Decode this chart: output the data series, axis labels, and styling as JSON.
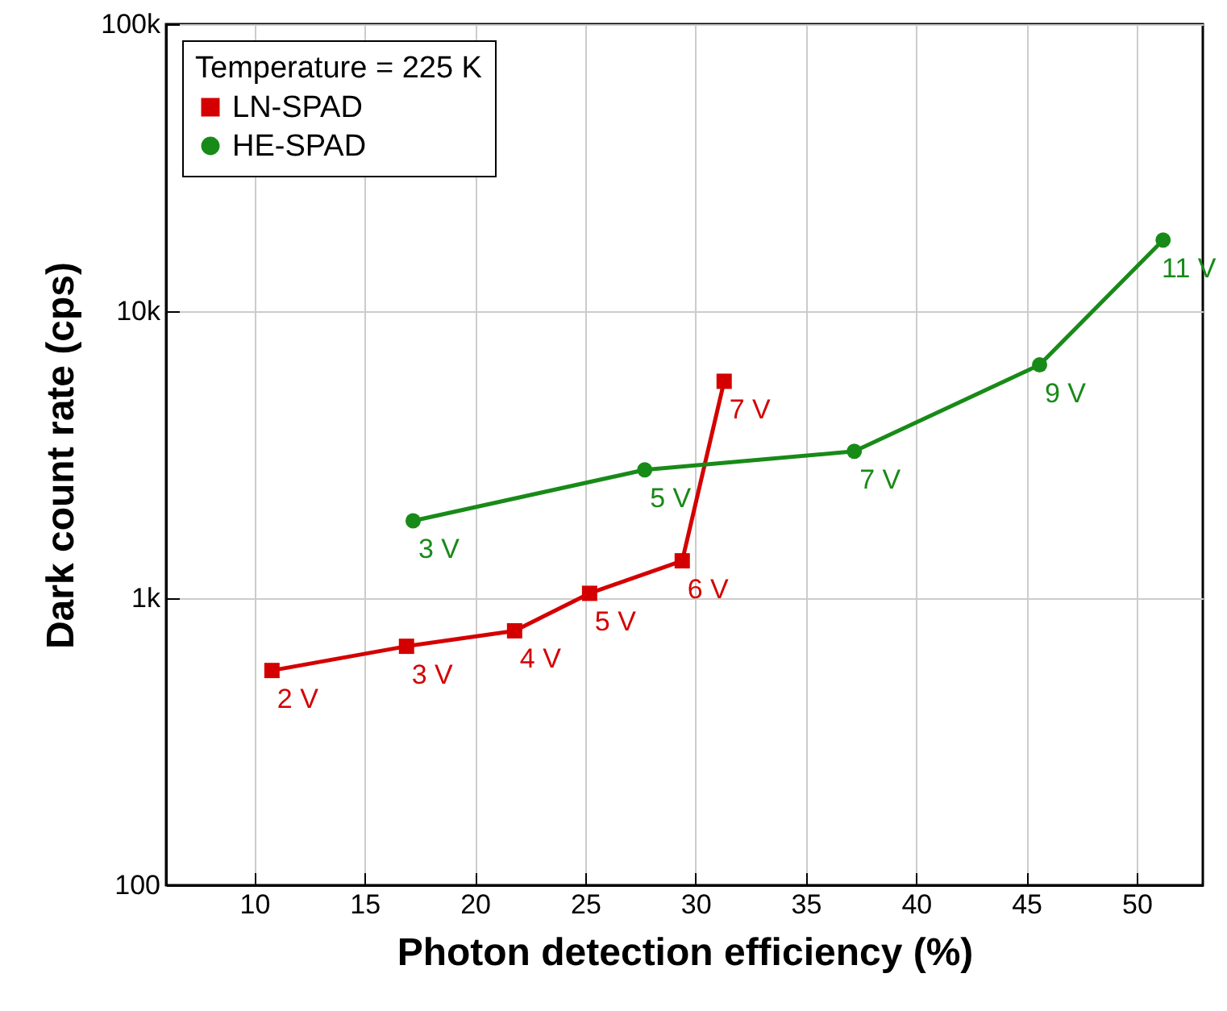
{
  "chart_data": {
    "type": "line",
    "xlabel": "Photon detection efficiency (%)",
    "ylabel": "Dark count rate (cps)",
    "legend_title": "Temperature = 225 K",
    "log": "y",
    "grid": true,
    "legend": "top left",
    "xlim": [
      6,
      53
    ],
    "xticks": [
      10,
      15,
      20,
      25,
      30,
      35,
      40,
      45,
      50
    ],
    "ylim": [
      100,
      100000
    ],
    "yticks": [
      100,
      {
        "value": 1000,
        "label": "1k"
      },
      {
        "value": 10000,
        "label": "10k"
      },
      {
        "value": 100000,
        "label": "100k"
      }
    ],
    "series": [
      {
        "name": "LN-SPAD",
        "color": "#d40000",
        "marker": "square",
        "x": [
          10.8,
          16.9,
          21.8,
          25.2,
          29.4,
          31.3
        ],
        "values": [
          560,
          680,
          770,
          1040,
          1350,
          5700
        ]
      },
      {
        "name": "HE-SPAD",
        "color": "#188a18",
        "marker": "circle",
        "x": [
          17.2,
          27.7,
          37.2,
          45.6,
          51.2
        ],
        "values": [
          1860,
          2800,
          3250,
          6500,
          17700
        ]
      }
    ],
    "annotations": [
      {
        "text": "2 V",
        "x": 10.8,
        "y": 560
      },
      {
        "text": "3 V",
        "x": 16.9,
        "y": 680
      },
      {
        "text": "4 V",
        "x": 21.8,
        "y": 770
      },
      {
        "text": "5 V",
        "x": 25.2,
        "y": 1040
      },
      {
        "text": "6 V",
        "x": 29.4,
        "y": 1350
      },
      {
        "text": "7 V",
        "x": 31.3,
        "y": 5700
      },
      {
        "text": "3 V",
        "x": 17.2,
        "y": 1860
      },
      {
        "text": "5 V",
        "x": 27.7,
        "y": 2800
      },
      {
        "text": "7 V",
        "x": 37.2,
        "y": 3250
      },
      {
        "text": "9 V",
        "x": 45.6,
        "y": 6500
      },
      {
        "text": "11 V",
        "x": 51.2,
        "y": 17700
      }
    ]
  }
}
